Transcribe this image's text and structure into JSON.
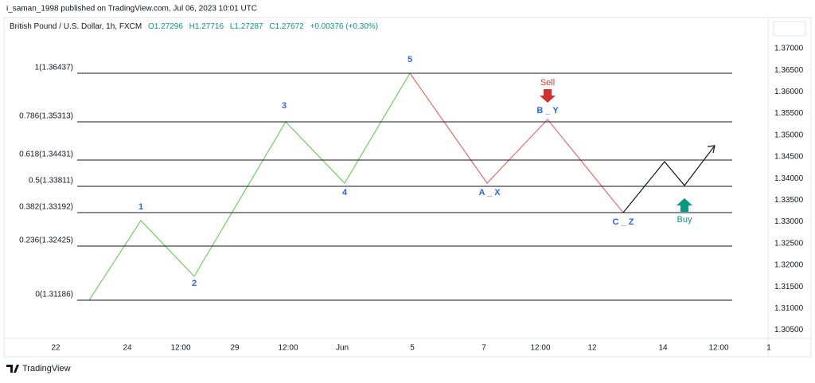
{
  "header": {
    "publisher": "i_saman_1998 published on TradingView.com, Jul 06, 2023 10:01 UTC"
  },
  "symbol": {
    "name": "British Pound / U.S. Dollar, 1h, FXCM",
    "open": "O1.27296",
    "high": "H1.27716",
    "low": "L1.27287",
    "close": "C1.27672",
    "change": "+0.00376 (+0.30%)"
  },
  "price_axis": [
    "1.37000",
    "1.36500",
    "1.36000",
    "1.35500",
    "1.35000",
    "1.34500",
    "1.34000",
    "1.33500",
    "1.33000",
    "1.32500",
    "1.32000",
    "1.31500",
    "1.31000",
    "1.30500"
  ],
  "time_axis": [
    "22",
    "24",
    "12:00",
    "29",
    "12:00",
    "Jun",
    "5",
    "7",
    "12:00",
    "12",
    "14",
    "12:00",
    "1"
  ],
  "fib_levels": [
    "1(1.36437)",
    "0.786(1.35313)",
    "0.618(1.34431)",
    "0.5(1.33811)",
    "0.382(1.33192)",
    "0.236(1.32425)",
    "0(1.31186)"
  ],
  "wave_labels": [
    "1",
    "2",
    "3",
    "4",
    "5",
    "A _ X",
    "B _ Y",
    "C _ Z"
  ],
  "signals": {
    "sell": "Sell",
    "buy": "Buy"
  },
  "footer": {
    "brand": "TradingView"
  }
}
